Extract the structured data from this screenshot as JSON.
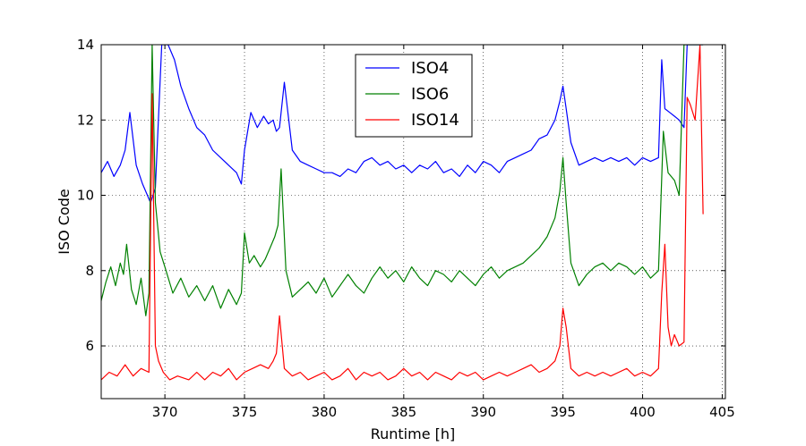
{
  "chart_data": {
    "type": "line",
    "title": "",
    "xlabel": "Runtime [h]",
    "ylabel": "ISO Code",
    "xlim": [
      366,
      405.2
    ],
    "ylim": [
      4.6,
      14
    ],
    "x_ticks": [
      "370",
      "375",
      "380",
      "385",
      "390",
      "395",
      "400",
      "405"
    ],
    "y_ticks": [
      "6",
      "8",
      "10",
      "12",
      "14"
    ],
    "grid": "dotted",
    "legend_position": "top-center",
    "series": [
      {
        "name": "ISO4",
        "color": "#0000ff",
        "x": [
          366.0,
          366.4,
          366.8,
          367.2,
          367.5,
          367.8,
          368.2,
          368.6,
          368.9,
          369.1,
          369.4,
          369.8,
          370.2,
          370.6,
          371.0,
          371.5,
          372.0,
          372.5,
          373.0,
          373.5,
          374.0,
          374.5,
          374.8,
          375.0,
          375.4,
          375.8,
          376.2,
          376.5,
          376.8,
          377.0,
          377.2,
          377.5,
          378.0,
          378.5,
          379.0,
          379.5,
          380.0,
          380.5,
          381.0,
          381.5,
          382.0,
          382.5,
          383.0,
          383.5,
          384.0,
          384.5,
          385.0,
          385.5,
          386.0,
          386.5,
          387.0,
          387.5,
          388.0,
          388.5,
          389.0,
          389.5,
          390.0,
          390.5,
          391.0,
          391.5,
          392.0,
          392.5,
          393.0,
          393.5,
          394.0,
          394.5,
          394.8,
          395.0,
          395.2,
          395.5,
          396.0,
          396.5,
          397.0,
          397.5,
          398.0,
          398.5,
          399.0,
          399.5,
          400.0,
          400.5,
          401.0,
          401.2,
          401.4,
          401.7,
          402.0,
          402.3,
          402.6,
          402.8,
          403.0,
          403.3,
          403.6,
          403.8
        ],
        "y": [
          10.6,
          10.9,
          10.5,
          10.8,
          11.2,
          12.2,
          10.8,
          10.3,
          10.0,
          9.8,
          10.2,
          14.0,
          14.0,
          13.6,
          12.9,
          12.3,
          11.8,
          11.6,
          11.2,
          11.0,
          10.8,
          10.6,
          10.3,
          11.2,
          12.2,
          11.8,
          12.1,
          11.9,
          12.0,
          11.7,
          11.8,
          13.0,
          11.2,
          10.9,
          10.8,
          10.7,
          10.6,
          10.6,
          10.5,
          10.7,
          10.6,
          10.9,
          11.0,
          10.8,
          10.9,
          10.7,
          10.8,
          10.6,
          10.8,
          10.7,
          10.9,
          10.6,
          10.7,
          10.5,
          10.8,
          10.6,
          10.9,
          10.8,
          10.6,
          10.9,
          11.0,
          11.1,
          11.2,
          11.5,
          11.6,
          12.0,
          12.5,
          12.9,
          12.3,
          11.4,
          10.8,
          10.9,
          11.0,
          10.9,
          11.0,
          10.9,
          11.0,
          10.8,
          11.0,
          10.9,
          11.0,
          13.6,
          12.3,
          12.2,
          12.1,
          12.0,
          11.8,
          14.0,
          14.0,
          14.0,
          14.0,
          14.0
        ]
      },
      {
        "name": "ISO6",
        "color": "#008000",
        "x": [
          366.0,
          366.3,
          366.6,
          366.9,
          367.2,
          367.4,
          367.6,
          367.9,
          368.2,
          368.5,
          368.8,
          369.0,
          369.2,
          369.4,
          369.7,
          370.0,
          370.5,
          371.0,
          371.5,
          372.0,
          372.5,
          373.0,
          373.5,
          374.0,
          374.5,
          374.8,
          375.0,
          375.3,
          375.6,
          376.0,
          376.3,
          376.6,
          376.9,
          377.1,
          377.3,
          377.6,
          378.0,
          378.5,
          379.0,
          379.5,
          380.0,
          380.5,
          381.0,
          381.5,
          382.0,
          382.5,
          383.0,
          383.5,
          384.0,
          384.5,
          385.0,
          385.5,
          386.0,
          386.5,
          387.0,
          387.5,
          388.0,
          388.5,
          389.0,
          389.5,
          390.0,
          390.5,
          391.0,
          391.5,
          392.0,
          392.5,
          393.0,
          393.5,
          394.0,
          394.5,
          394.8,
          395.0,
          395.2,
          395.5,
          396.0,
          396.5,
          397.0,
          397.5,
          398.0,
          398.5,
          399.0,
          399.5,
          400.0,
          400.5,
          401.0,
          401.3,
          401.6,
          402.0,
          402.3,
          402.6,
          402.8,
          403.0,
          403.3,
          403.6,
          403.8
        ],
        "y": [
          7.2,
          7.7,
          8.1,
          7.6,
          8.2,
          7.9,
          8.7,
          7.5,
          7.1,
          7.8,
          6.8,
          7.4,
          14.0,
          9.8,
          8.5,
          8.1,
          7.4,
          7.8,
          7.3,
          7.6,
          7.2,
          7.6,
          7.0,
          7.5,
          7.1,
          7.4,
          9.0,
          8.2,
          8.4,
          8.1,
          8.3,
          8.6,
          8.9,
          9.2,
          10.7,
          8.0,
          7.3,
          7.5,
          7.7,
          7.4,
          7.8,
          7.3,
          7.6,
          7.9,
          7.6,
          7.4,
          7.8,
          8.1,
          7.8,
          8.0,
          7.7,
          8.1,
          7.8,
          7.6,
          8.0,
          7.9,
          7.7,
          8.0,
          7.8,
          7.6,
          7.9,
          8.1,
          7.8,
          8.0,
          8.1,
          8.2,
          8.4,
          8.6,
          8.9,
          9.4,
          10.1,
          11.0,
          9.8,
          8.2,
          7.6,
          7.9,
          8.1,
          8.2,
          8.0,
          8.2,
          8.1,
          7.9,
          8.1,
          7.8,
          8.0,
          11.7,
          10.6,
          10.4,
          10.0,
          14.0,
          14.0,
          14.0,
          14.0,
          14.0,
          14.0
        ]
      },
      {
        "name": "ISO14",
        "color": "#ff0000",
        "x": [
          366.0,
          366.5,
          367.0,
          367.5,
          368.0,
          368.5,
          369.0,
          369.2,
          369.4,
          369.6,
          369.9,
          370.3,
          370.8,
          371.5,
          372.0,
          372.5,
          373.0,
          373.5,
          374.0,
          374.5,
          375.0,
          375.5,
          376.0,
          376.5,
          376.8,
          377.0,
          377.2,
          377.5,
          378.0,
          378.5,
          379.0,
          379.5,
          380.0,
          380.5,
          381.0,
          381.5,
          382.0,
          382.5,
          383.0,
          383.5,
          384.0,
          384.5,
          385.0,
          385.5,
          386.0,
          386.5,
          387.0,
          387.5,
          388.0,
          388.5,
          389.0,
          389.5,
          390.0,
          390.5,
          391.0,
          391.5,
          392.0,
          392.5,
          393.0,
          393.5,
          394.0,
          394.5,
          394.8,
          395.0,
          395.2,
          395.5,
          396.0,
          396.5,
          397.0,
          397.5,
          398.0,
          398.5,
          399.0,
          399.5,
          400.0,
          400.5,
          401.0,
          401.2,
          401.4,
          401.6,
          401.8,
          402.0,
          402.3,
          402.6,
          402.8,
          403.0,
          403.3,
          403.6,
          403.8
        ],
        "y": [
          5.1,
          5.3,
          5.2,
          5.5,
          5.2,
          5.4,
          5.3,
          12.7,
          6.0,
          5.6,
          5.3,
          5.1,
          5.2,
          5.1,
          5.3,
          5.1,
          5.3,
          5.2,
          5.4,
          5.1,
          5.3,
          5.4,
          5.5,
          5.4,
          5.6,
          5.8,
          6.8,
          5.4,
          5.2,
          5.3,
          5.1,
          5.2,
          5.3,
          5.1,
          5.2,
          5.4,
          5.1,
          5.3,
          5.2,
          5.3,
          5.1,
          5.2,
          5.4,
          5.2,
          5.3,
          5.1,
          5.3,
          5.2,
          5.1,
          5.3,
          5.2,
          5.3,
          5.1,
          5.2,
          5.3,
          5.2,
          5.3,
          5.4,
          5.5,
          5.3,
          5.4,
          5.6,
          6.0,
          7.0,
          6.5,
          5.4,
          5.2,
          5.3,
          5.2,
          5.3,
          5.2,
          5.3,
          5.4,
          5.2,
          5.3,
          5.2,
          5.4,
          7.4,
          8.7,
          6.5,
          6.0,
          6.3,
          6.0,
          6.1,
          12.6,
          12.4,
          12.0,
          14.0,
          9.5
        ]
      }
    ]
  }
}
